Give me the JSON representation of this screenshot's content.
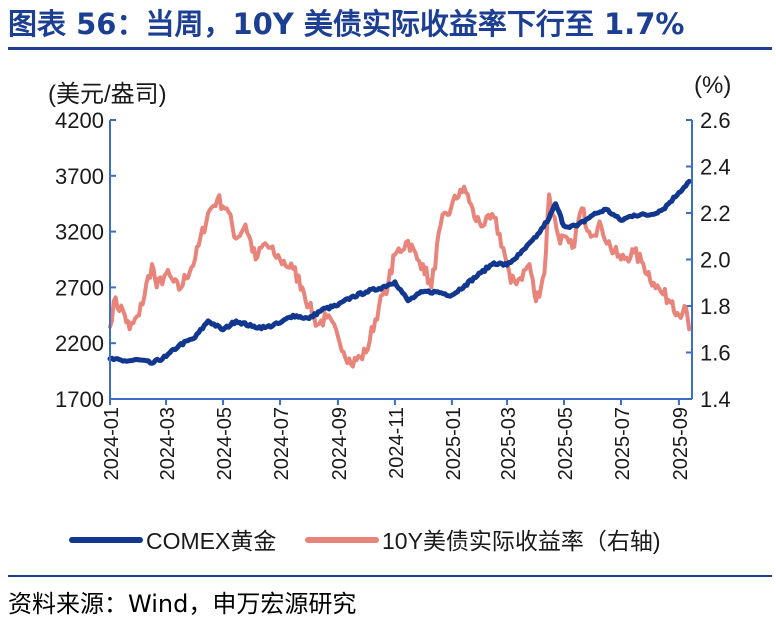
{
  "figure": {
    "title": "图表 56：当周，10Y 美债实际收益率下行至 1.7%",
    "source": "资料来源：Wind，申万宏源研究"
  },
  "colors": {
    "title": "#1c3f94",
    "gold_series": "#12378f",
    "yield_series": "#e8847a",
    "axis": "#3b6fc4"
  },
  "chart_data": {
    "type": "line",
    "left_unit": "(美元/盎司)",
    "right_unit": "(%)",
    "left_ylim": [
      1700,
      4200
    ],
    "right_ylim": [
      1.4,
      2.6
    ],
    "left_ticks": [
      "4200",
      "3700",
      "3200",
      "2700",
      "2200",
      "1700"
    ],
    "right_ticks": [
      "2.6",
      "2.4",
      "2.2",
      "2.0",
      "1.8",
      "1.6",
      "1.4"
    ],
    "x_ticks": [
      "2024-01",
      "2024-03",
      "2024-05",
      "2024-07",
      "2024-09",
      "2024-11",
      "2025-01",
      "2025-03",
      "2025-05",
      "2025-07",
      "2025-09"
    ],
    "x_range": [
      "2024-01-01",
      "2025-09-15"
    ],
    "series": [
      {
        "name": "COMEX黄金",
        "axis": "left",
        "points": [
          [
            "2024-01-01",
            2060
          ],
          [
            "2024-01-15",
            2040
          ],
          [
            "2024-02-01",
            2050
          ],
          [
            "2024-02-15",
            2020
          ],
          [
            "2024-03-01",
            2080
          ],
          [
            "2024-03-15",
            2180
          ],
          [
            "2024-04-01",
            2250
          ],
          [
            "2024-04-15",
            2400
          ],
          [
            "2024-05-01",
            2320
          ],
          [
            "2024-05-15",
            2400
          ],
          [
            "2024-06-01",
            2350
          ],
          [
            "2024-06-15",
            2340
          ],
          [
            "2024-07-01",
            2380
          ],
          [
            "2024-07-15",
            2450
          ],
          [
            "2024-08-01",
            2420
          ],
          [
            "2024-08-15",
            2500
          ],
          [
            "2024-09-01",
            2540
          ],
          [
            "2024-09-15",
            2610
          ],
          [
            "2024-10-01",
            2660
          ],
          [
            "2024-10-15",
            2690
          ],
          [
            "2024-11-01",
            2750
          ],
          [
            "2024-11-15",
            2580
          ],
          [
            "2024-12-01",
            2660
          ],
          [
            "2024-12-15",
            2660
          ],
          [
            "2025-01-01",
            2630
          ],
          [
            "2025-01-15",
            2720
          ],
          [
            "2025-02-01",
            2830
          ],
          [
            "2025-02-15",
            2920
          ],
          [
            "2025-03-01",
            2900
          ],
          [
            "2025-03-15",
            3000
          ],
          [
            "2025-04-01",
            3150
          ],
          [
            "2025-04-15",
            3320
          ],
          [
            "2025-04-22",
            3450
          ],
          [
            "2025-05-01",
            3250
          ],
          [
            "2025-05-15",
            3250
          ],
          [
            "2025-06-01",
            3350
          ],
          [
            "2025-06-15",
            3400
          ],
          [
            "2025-07-01",
            3300
          ],
          [
            "2025-07-15",
            3350
          ],
          [
            "2025-08-01",
            3350
          ],
          [
            "2025-08-15",
            3400
          ],
          [
            "2025-09-01",
            3550
          ],
          [
            "2025-09-12",
            3650
          ]
        ]
      },
      {
        "name": "10Y美债实际收益率（右轴)",
        "axis": "right",
        "points": [
          [
            "2024-01-01",
            1.71
          ],
          [
            "2024-01-05",
            1.82
          ],
          [
            "2024-01-15",
            1.78
          ],
          [
            "2024-01-22",
            1.7
          ],
          [
            "2024-02-01",
            1.76
          ],
          [
            "2024-02-15",
            1.98
          ],
          [
            "2024-02-20",
            1.88
          ],
          [
            "2024-03-01",
            1.94
          ],
          [
            "2024-03-15",
            1.87
          ],
          [
            "2024-04-01",
            2.0
          ],
          [
            "2024-04-15",
            2.2
          ],
          [
            "2024-04-25",
            2.26
          ],
          [
            "2024-05-05",
            2.22
          ],
          [
            "2024-05-15",
            2.09
          ],
          [
            "2024-05-25",
            2.15
          ],
          [
            "2024-06-05",
            2.0
          ],
          [
            "2024-06-15",
            2.07
          ],
          [
            "2024-06-25",
            2.02
          ],
          [
            "2024-07-01",
            2.0
          ],
          [
            "2024-07-15",
            1.96
          ],
          [
            "2024-07-25",
            1.88
          ],
          [
            "2024-08-01",
            1.8
          ],
          [
            "2024-08-10",
            1.72
          ],
          [
            "2024-08-20",
            1.75
          ],
          [
            "2024-09-01",
            1.67
          ],
          [
            "2024-09-15",
            1.55
          ],
          [
            "2024-09-25",
            1.58
          ],
          [
            "2024-10-01",
            1.6
          ],
          [
            "2024-10-15",
            1.8
          ],
          [
            "2024-10-25",
            1.9
          ],
          [
            "2024-11-01",
            2.02
          ],
          [
            "2024-11-15",
            2.08
          ],
          [
            "2024-11-25",
            2.0
          ],
          [
            "2024-12-01",
            1.98
          ],
          [
            "2024-12-10",
            1.88
          ],
          [
            "2024-12-20",
            2.15
          ],
          [
            "2024-12-31",
            2.22
          ],
          [
            "2025-01-10",
            2.3
          ],
          [
            "2025-01-18",
            2.28
          ],
          [
            "2025-01-25",
            2.18
          ],
          [
            "2025-02-05",
            2.15
          ],
          [
            "2025-02-15",
            2.18
          ],
          [
            "2025-02-25",
            2.05
          ],
          [
            "2025-03-05",
            1.9
          ],
          [
            "2025-03-15",
            1.92
          ],
          [
            "2025-03-25",
            1.98
          ],
          [
            "2025-04-01",
            1.82
          ],
          [
            "2025-04-10",
            1.94
          ],
          [
            "2025-04-15",
            2.28
          ],
          [
            "2025-04-25",
            2.1
          ],
          [
            "2025-05-10",
            2.05
          ],
          [
            "2025-05-20",
            2.22
          ],
          [
            "2025-05-28",
            2.12
          ],
          [
            "2025-06-10",
            2.14
          ],
          [
            "2025-06-20",
            2.05
          ],
          [
            "2025-07-01",
            2.0
          ],
          [
            "2025-07-15",
            2.03
          ],
          [
            "2025-07-25",
            1.98
          ],
          [
            "2025-08-05",
            1.9
          ],
          [
            "2025-08-15",
            1.85
          ],
          [
            "2025-08-25",
            1.82
          ],
          [
            "2025-09-01",
            1.76
          ],
          [
            "2025-09-07",
            1.8
          ],
          [
            "2025-09-12",
            1.7
          ]
        ]
      }
    ]
  }
}
